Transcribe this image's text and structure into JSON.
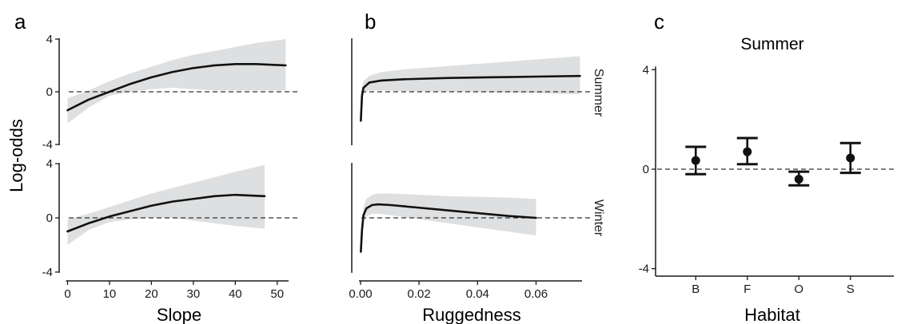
{
  "panels": {
    "a": "a",
    "b": "b",
    "c": "c"
  },
  "y_axis_title": "Log-odds",
  "strip_labels": {
    "summer": "Summer",
    "winter": "Winter"
  },
  "chart_data": [
    {
      "id": "slope",
      "type": "line",
      "panel": "a",
      "xlabel": "Slope",
      "ylabel": "Log-odds",
      "xlim": [
        -2,
        55
      ],
      "ylim": [
        -4.3,
        4.3
      ],
      "xticks": [
        0,
        10,
        20,
        30,
        40,
        50
      ],
      "yticks": [
        4,
        0,
        -4
      ],
      "facets": [
        {
          "name": "Summer",
          "x": [
            0,
            5,
            10,
            15,
            20,
            25,
            30,
            35,
            40,
            45,
            52
          ],
          "y": [
            -1.4,
            -0.6,
            0.0,
            0.6,
            1.1,
            1.5,
            1.8,
            2.0,
            2.1,
            2.1,
            2.0
          ],
          "lower": [
            -2.4,
            -1.2,
            -0.3,
            0.0,
            0.2,
            0.3,
            0.2,
            0.1,
            0.1,
            0.1,
            0.1
          ],
          "upper": [
            -0.5,
            0.1,
            0.8,
            1.4,
            1.9,
            2.4,
            2.8,
            3.1,
            3.4,
            3.7,
            4.0
          ]
        },
        {
          "name": "Winter",
          "x": [
            0,
            5,
            10,
            15,
            20,
            25,
            30,
            35,
            40,
            47
          ],
          "y": [
            -1.0,
            -0.4,
            0.1,
            0.5,
            0.9,
            1.2,
            1.4,
            1.6,
            1.7,
            1.6
          ],
          "lower": [
            -2.0,
            -0.9,
            -0.3,
            -0.1,
            0.0,
            0.0,
            -0.2,
            -0.4,
            -0.6,
            -0.8
          ],
          "upper": [
            -0.1,
            0.3,
            0.8,
            1.3,
            1.8,
            2.2,
            2.6,
            3.0,
            3.4,
            3.9
          ]
        }
      ]
    },
    {
      "id": "ruggedness",
      "type": "line",
      "panel": "b",
      "xlabel": "Ruggedness",
      "ylabel": "",
      "xlim": [
        -0.003,
        0.079
      ],
      "ylim": [
        -4.3,
        4.3
      ],
      "xticks": [
        "0.00",
        "0.02",
        "0.04",
        "0.06"
      ],
      "yticks": [],
      "facets": [
        {
          "name": "Summer",
          "x": [
            0.0001,
            0.0005,
            0.001,
            0.003,
            0.007,
            0.015,
            0.03,
            0.045,
            0.06,
            0.075
          ],
          "y": [
            -2.2,
            -0.3,
            0.3,
            0.7,
            0.85,
            0.95,
            1.05,
            1.1,
            1.15,
            1.2
          ],
          "lower": [
            -2.4,
            -0.8,
            -0.1,
            0.1,
            0.1,
            0.05,
            0.0,
            -0.05,
            -0.1,
            -0.2
          ],
          "upper": [
            -1.8,
            0.3,
            0.8,
            1.2,
            1.5,
            1.7,
            1.95,
            2.2,
            2.45,
            2.7
          ]
        },
        {
          "name": "Winter",
          "x": [
            0.0001,
            0.0005,
            0.001,
            0.002,
            0.004,
            0.006,
            0.01,
            0.02,
            0.03,
            0.04,
            0.05,
            0.06
          ],
          "y": [
            -2.5,
            -0.9,
            0.2,
            0.7,
            0.95,
            1.0,
            0.95,
            0.75,
            0.55,
            0.35,
            0.15,
            0.0
          ],
          "lower": [
            -2.7,
            -1.4,
            -0.3,
            0.1,
            0.3,
            0.3,
            0.2,
            -0.1,
            -0.4,
            -0.7,
            -1.0,
            -1.3
          ],
          "upper": [
            -2.2,
            -0.3,
            0.8,
            1.4,
            1.7,
            1.8,
            1.8,
            1.7,
            1.6,
            1.55,
            1.5,
            1.4
          ]
        }
      ]
    },
    {
      "id": "habitat",
      "type": "scatter",
      "panel": "c",
      "title": "Summer",
      "xlabel": "Habitat",
      "ylabel": "",
      "ylim": [
        -4.3,
        4.3
      ],
      "yticks": [
        4,
        0,
        -4
      ],
      "categories": [
        "B",
        "F",
        "O",
        "S"
      ],
      "values": [
        0.35,
        0.7,
        -0.4,
        0.45
      ],
      "error_low": [
        -0.2,
        0.2,
        -0.65,
        -0.15
      ],
      "error_high": [
        0.9,
        1.25,
        -0.1,
        1.05
      ]
    }
  ],
  "colors": {
    "line": "#111111",
    "ribbon": "#dedfe0",
    "reference": "#333333",
    "axis": "#1a1a1a"
  }
}
